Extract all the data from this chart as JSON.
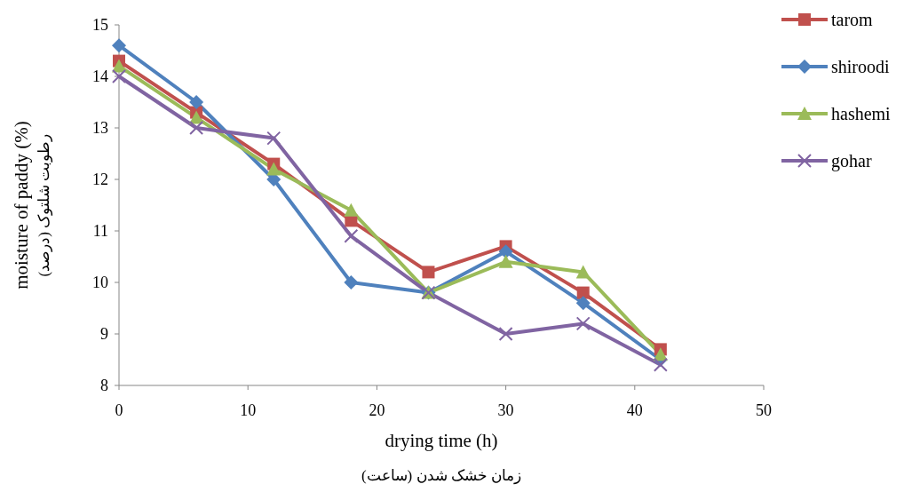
{
  "chart_data": {
    "type": "line",
    "xlabel": "drying time (h)\nزمان خشک شدن (ساعت)",
    "ylabel": "moisture of paddy (%)\nرطوبت شلتوک (درصد)",
    "x": [
      0,
      6,
      12,
      18,
      24,
      30,
      36,
      42
    ],
    "series": [
      {
        "name": "tarom",
        "color": "#c0504d",
        "marker": "square",
        "values": [
          14.3,
          13.3,
          12.3,
          11.2,
          10.2,
          10.7,
          9.8,
          8.7
        ]
      },
      {
        "name": "shiroodi",
        "color": "#4f81bd",
        "marker": "diamond",
        "values": [
          14.6,
          13.5,
          12.0,
          10.0,
          9.8,
          10.6,
          9.6,
          8.5
        ]
      },
      {
        "name": "hashemi",
        "color": "#9bbb59",
        "marker": "triangle",
        "values": [
          14.2,
          13.2,
          12.2,
          11.4,
          9.8,
          10.4,
          10.2,
          8.6
        ]
      },
      {
        "name": "gohar",
        "color": "#8064a2",
        "marker": "cross",
        "values": [
          14.0,
          13.0,
          12.8,
          10.9,
          9.8,
          9.0,
          9.2,
          8.4
        ]
      }
    ],
    "xlim": [
      0,
      50
    ],
    "xticks": [
      0,
      10,
      20,
      30,
      40,
      50
    ],
    "ylim": [
      8,
      15
    ],
    "yticks": [
      8,
      9,
      10,
      11,
      12,
      13,
      14,
      15
    ],
    "grid": false,
    "legend": "top right",
    "line_style": "solid"
  }
}
